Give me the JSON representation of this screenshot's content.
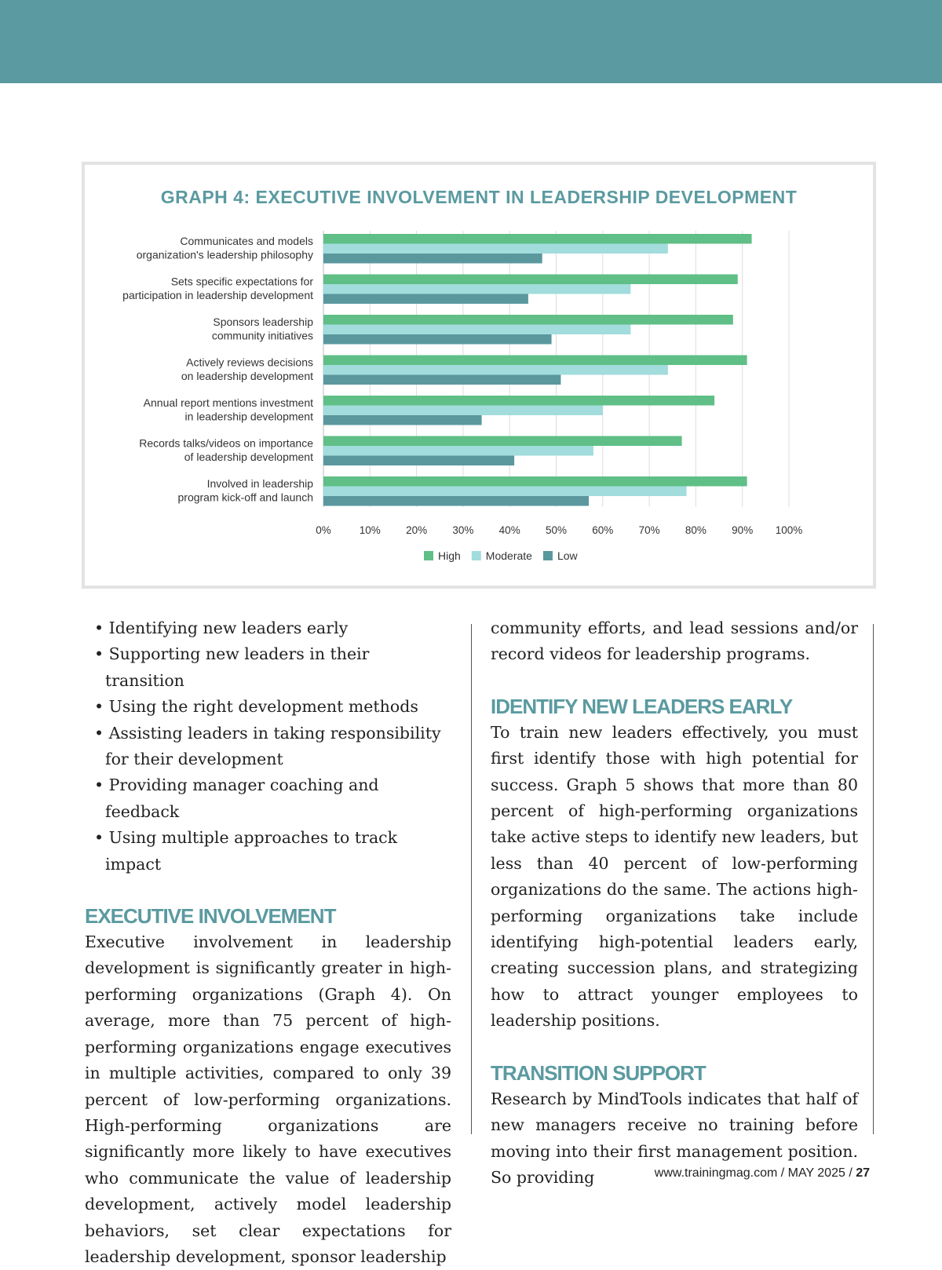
{
  "colors": {
    "band": "#5b9aa0",
    "high": "#5fbf86",
    "moderate": "#a2dcdc",
    "low": "#5a989e",
    "heading": "#5a9aa0"
  },
  "chart_data": {
    "type": "bar",
    "orientation": "horizontal",
    "title": "GRAPH 4: EXECUTIVE INVOLVEMENT IN LEADERSHIP DEVELOPMENT",
    "categories": [
      [
        "Communicates and models",
        "organization's leadership philosophy"
      ],
      [
        "Sets specific expectations for",
        "participation in leadership development"
      ],
      [
        "Sponsors leadership",
        "community initiatives"
      ],
      [
        "Actively reviews decisions",
        "on leadership development"
      ],
      [
        "Annual report mentions investment",
        "in leadership development"
      ],
      [
        "Records talks/videos on importance",
        "of leadership development"
      ],
      [
        "Involved in leadership",
        "program kick-off and launch"
      ]
    ],
    "series": [
      {
        "name": "High",
        "values": [
          92,
          89,
          88,
          91,
          84,
          77,
          91
        ]
      },
      {
        "name": "Moderate",
        "values": [
          74,
          66,
          66,
          74,
          60,
          58,
          78
        ]
      },
      {
        "name": "Low",
        "values": [
          47,
          44,
          49,
          51,
          34,
          41,
          57
        ]
      }
    ],
    "xlim": [
      0,
      100
    ],
    "xticks": [
      "0%",
      "10%",
      "20%",
      "30%",
      "40%",
      "50%",
      "60%",
      "70%",
      "80%",
      "90%",
      "100%"
    ],
    "grid": true,
    "legend": "bottom"
  },
  "left": {
    "bullets": [
      "Identifying new leaders early",
      "Supporting new leaders in their transition",
      "Using the right development methods",
      "Assisting leaders in taking responsibility for their development",
      "Providing manager coaching and feedback",
      "Using multiple approaches to track impact"
    ],
    "heading": "EXECUTIVE INVOLVEMENT",
    "body": "Executive involvement in leadership development is significantly greater in high-performing organizations (Graph 4). On average, more than 75 percent of high-performing organizations engage executives in multiple activities, compared to only 39 percent of low-performing organizations. High-performing organizations are significantly more likely to have executives who communicate the value of leadership development, actively model leadership behaviors, set clear expectations for leadership development, sponsor leadership"
  },
  "right": {
    "cont": "community efforts, and lead sessions and/or record videos for leadership programs.",
    "heading1": "IDENTIFY NEW LEADERS EARLY",
    "body1": "To train new leaders effectively, you must first identify those with high potential for success. Graph 5 shows that more than 80 percent of high-performing organizations take active steps to identify new leaders, but less than 40 percent of low-performing organizations do the same. The actions high-performing organizations take include identifying high-potential leaders early, creating succession plans, and strategizing how to attract younger employees to leadership positions.",
    "heading2": "TRANSITION SUPPORT",
    "body2": "Research by MindTools indicates that half of new managers receive no training before moving into their first management position. So providing"
  },
  "footer": {
    "site": "www.trainingmag.com / MAY 2025 / ",
    "page": "27"
  }
}
